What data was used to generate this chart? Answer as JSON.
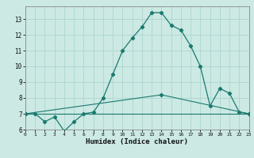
{
  "title": "",
  "xlabel": "Humidex (Indice chaleur)",
  "bg_color": "#cce9e4",
  "grid_color": "#b0d8d2",
  "line_color": "#1a7a6e",
  "xlim": [
    0,
    23
  ],
  "ylim": [
    6.0,
    13.8
  ],
  "yticks": [
    6,
    7,
    8,
    9,
    10,
    11,
    12,
    13
  ],
  "xticks": [
    0,
    1,
    2,
    3,
    4,
    5,
    6,
    7,
    8,
    9,
    10,
    11,
    12,
    13,
    14,
    15,
    16,
    17,
    18,
    19,
    20,
    21,
    22,
    23
  ],
  "series": [
    {
      "x": [
        0,
        1,
        2,
        3,
        4,
        5,
        6,
        7,
        8,
        9,
        10,
        11,
        12,
        13,
        14,
        15,
        16,
        17,
        18,
        19,
        20,
        21,
        22,
        23
      ],
      "y": [
        7.0,
        7.0,
        6.5,
        6.8,
        5.9,
        6.5,
        7.0,
        7.1,
        8.0,
        9.5,
        11.0,
        11.8,
        12.5,
        13.4,
        13.4,
        12.6,
        12.3,
        11.3,
        10.0,
        7.5,
        8.6,
        8.3,
        7.1,
        7.0
      ]
    },
    {
      "x": [
        0,
        23
      ],
      "y": [
        7.0,
        7.0
      ]
    },
    {
      "x": [
        0,
        14,
        23
      ],
      "y": [
        7.0,
        8.2,
        7.0
      ]
    }
  ]
}
